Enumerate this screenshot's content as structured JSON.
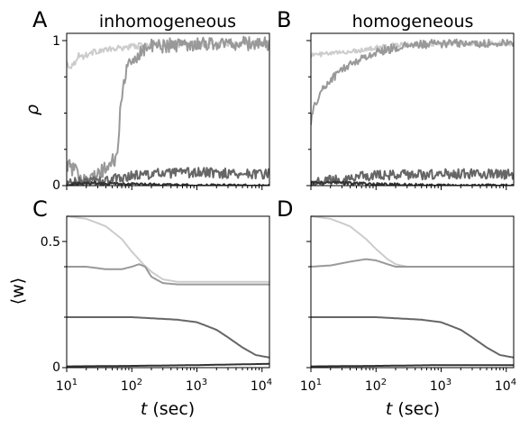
{
  "figure": {
    "panels": [
      {
        "letter": "A",
        "title": "inhomogeneous"
      },
      {
        "letter": "B",
        "title": "homogeneous"
      },
      {
        "letter": "C",
        "title": ""
      },
      {
        "letter": "D",
        "title": ""
      }
    ],
    "y_label_top": "ρ",
    "y_label_bottom": "⟨w⟩",
    "x_label_prefix": "t",
    "x_label_unit": "(sec)",
    "x_tick_base": "10",
    "x_tick_exponents": [
      "1",
      "2",
      "3",
      "4"
    ],
    "y_ticks_top": [
      "0",
      "1"
    ],
    "y_ticks_bottom": [
      "0",
      "0.5"
    ]
  },
  "chart_data": [
    {
      "panel": "A",
      "type": "line",
      "title": "inhomogeneous",
      "xlabel": "",
      "ylabel": "ρ",
      "x_scale": "log",
      "xlim": [
        10,
        13000
      ],
      "ylim": [
        0,
        1.05
      ],
      "yticks": [
        0,
        1
      ],
      "grid": false,
      "series": [
        {
          "color": "#cccccc",
          "noise": 0.02,
          "x": [
            10,
            11,
            13,
            15,
            18,
            22,
            30,
            50,
            100,
            200,
            400,
            1000,
            3000,
            13000
          ],
          "y": [
            0.85,
            0.82,
            0.84,
            0.9,
            0.89,
            0.91,
            0.93,
            0.94,
            0.96,
            0.97,
            0.97,
            0.98,
            0.98,
            0.98
          ]
        },
        {
          "color": "#999999",
          "noise": 0.05,
          "x": [
            10,
            15,
            25,
            40,
            60,
            65,
            70,
            80,
            100,
            120,
            150,
            200,
            400,
            1000,
            13000
          ],
          "y": [
            0.15,
            0.08,
            0.05,
            0.12,
            0.2,
            0.45,
            0.62,
            0.78,
            0.85,
            0.9,
            0.94,
            0.96,
            0.97,
            0.98,
            0.98
          ]
        },
        {
          "color": "#666666",
          "noise": 0.035,
          "x": [
            10,
            30,
            60,
            100,
            200,
            1000,
            13000
          ],
          "y": [
            0.02,
            0.03,
            0.05,
            0.07,
            0.08,
            0.09,
            0.08
          ]
        },
        {
          "color": "#333333",
          "noise": 0.01,
          "x": [
            10,
            30,
            100,
            1000,
            13000
          ],
          "y": [
            0.01,
            0.02,
            0.01,
            0.0,
            0.0
          ]
        }
      ]
    },
    {
      "panel": "B",
      "type": "line",
      "title": "homogeneous",
      "xlabel": "",
      "ylabel": "",
      "x_scale": "log",
      "xlim": [
        10,
        13000
      ],
      "ylim": [
        0,
        1.05
      ],
      "yticks": [
        0,
        1
      ],
      "grid": false,
      "series": [
        {
          "color": "#cccccc",
          "noise": 0.015,
          "x": [
            10,
            20,
            50,
            100,
            200,
            1000,
            13000
          ],
          "y": [
            0.9,
            0.91,
            0.93,
            0.95,
            0.97,
            0.98,
            0.98
          ]
        },
        {
          "color": "#999999",
          "noise": 0.03,
          "x": [
            10,
            12,
            15,
            20,
            30,
            50,
            80,
            120,
            200,
            400,
            1000,
            13000
          ],
          "y": [
            0.45,
            0.58,
            0.66,
            0.73,
            0.8,
            0.86,
            0.9,
            0.93,
            0.95,
            0.97,
            0.98,
            0.98
          ]
        },
        {
          "color": "#666666",
          "noise": 0.035,
          "x": [
            10,
            30,
            100,
            1000,
            13000
          ],
          "y": [
            0.02,
            0.05,
            0.07,
            0.08,
            0.08
          ]
        },
        {
          "color": "#333333",
          "noise": 0.01,
          "x": [
            10,
            30,
            100,
            1000,
            13000
          ],
          "y": [
            0.02,
            0.02,
            0.01,
            0.0,
            0.0
          ]
        }
      ]
    },
    {
      "panel": "C",
      "type": "line",
      "title": "",
      "xlabel": "t (sec)",
      "ylabel": "⟨w⟩",
      "x_scale": "log",
      "xlim": [
        10,
        13000
      ],
      "ylim": [
        0,
        0.6
      ],
      "yticks": [
        0,
        0.5
      ],
      "grid": false,
      "series": [
        {
          "color": "#cccccc",
          "noise": 0,
          "x": [
            10,
            20,
            40,
            70,
            100,
            150,
            200,
            300,
            500,
            1000,
            13000
          ],
          "y": [
            0.6,
            0.59,
            0.56,
            0.51,
            0.46,
            0.41,
            0.38,
            0.35,
            0.34,
            0.34,
            0.34
          ]
        },
        {
          "color": "#999999",
          "noise": 0,
          "x": [
            10,
            20,
            40,
            70,
            100,
            130,
            160,
            200,
            300,
            500,
            1000,
            13000
          ],
          "y": [
            0.4,
            0.4,
            0.39,
            0.39,
            0.4,
            0.41,
            0.4,
            0.36,
            0.335,
            0.33,
            0.33,
            0.33
          ]
        },
        {
          "color": "#666666",
          "noise": 0,
          "x": [
            10,
            100,
            500,
            1000,
            2000,
            3000,
            5000,
            8000,
            13000
          ],
          "y": [
            0.2,
            0.2,
            0.19,
            0.18,
            0.15,
            0.12,
            0.08,
            0.05,
            0.04
          ]
        },
        {
          "color": "#333333",
          "noise": 0,
          "x": [
            10,
            100,
            1000,
            13000
          ],
          "y": [
            0.005,
            0.007,
            0.01,
            0.015
          ]
        }
      ]
    },
    {
      "panel": "D",
      "type": "line",
      "title": "",
      "xlabel": "t (sec)",
      "ylabel": "",
      "x_scale": "log",
      "xlim": [
        10,
        13000
      ],
      "ylim": [
        0,
        0.6
      ],
      "yticks": [
        0,
        0.5
      ],
      "grid": false,
      "series": [
        {
          "color": "#cccccc",
          "noise": 0,
          "x": [
            10,
            20,
            40,
            70,
            100,
            150,
            200,
            300,
            500,
            1000,
            13000
          ],
          "y": [
            0.6,
            0.59,
            0.56,
            0.51,
            0.47,
            0.43,
            0.41,
            0.4,
            0.4,
            0.4,
            0.4
          ]
        },
        {
          "color": "#999999",
          "noise": 0,
          "x": [
            10,
            20,
            40,
            70,
            100,
            150,
            200,
            300,
            500,
            1000,
            13000
          ],
          "y": [
            0.4,
            0.405,
            0.42,
            0.43,
            0.425,
            0.41,
            0.4,
            0.4,
            0.4,
            0.4,
            0.4
          ]
        },
        {
          "color": "#666666",
          "noise": 0,
          "x": [
            10,
            100,
            500,
            1000,
            2000,
            3000,
            5000,
            8000,
            13000
          ],
          "y": [
            0.2,
            0.2,
            0.19,
            0.18,
            0.15,
            0.12,
            0.08,
            0.05,
            0.04
          ]
        },
        {
          "color": "#333333",
          "noise": 0,
          "x": [
            10,
            100,
            1000,
            13000
          ],
          "y": [
            0.005,
            0.007,
            0.01,
            0.01
          ]
        }
      ]
    }
  ]
}
